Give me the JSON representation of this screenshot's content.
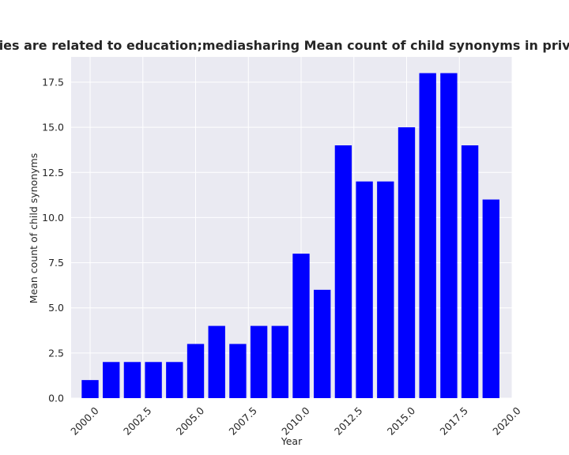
{
  "chart_data": {
    "type": "bar",
    "title": "Categories are related to education;mediasharing Mean count of child synonyms in privacy policies",
    "xlabel": "Year",
    "ylabel": "Mean count of child synonyms",
    "x": [
      2000,
      2001,
      2002,
      2003,
      2004,
      2005,
      2006,
      2007,
      2008,
      2009,
      2010,
      2011,
      2012,
      2013,
      2014,
      2015,
      2016,
      2017,
      2018,
      2019
    ],
    "values": [
      1,
      2,
      2,
      2,
      2,
      3,
      4,
      3,
      4,
      4,
      8,
      6,
      14,
      12,
      12,
      15,
      18,
      18,
      14,
      11
    ],
    "xlim": [
      1999.1,
      2020.0
    ],
    "ylim": [
      0,
      18.9
    ],
    "xticks": [
      "2000.0",
      "2002.5",
      "2005.0",
      "2007.5",
      "2010.0",
      "2012.5",
      "2015.0",
      "2017.5",
      "2020.0"
    ],
    "yticks": [
      "0.0",
      "2.5",
      "5.0",
      "7.5",
      "10.0",
      "12.5",
      "15.0",
      "17.5"
    ],
    "bar_color": "#0000ff",
    "background": "#eaeaf2",
    "grid": true,
    "legend": "none"
  }
}
